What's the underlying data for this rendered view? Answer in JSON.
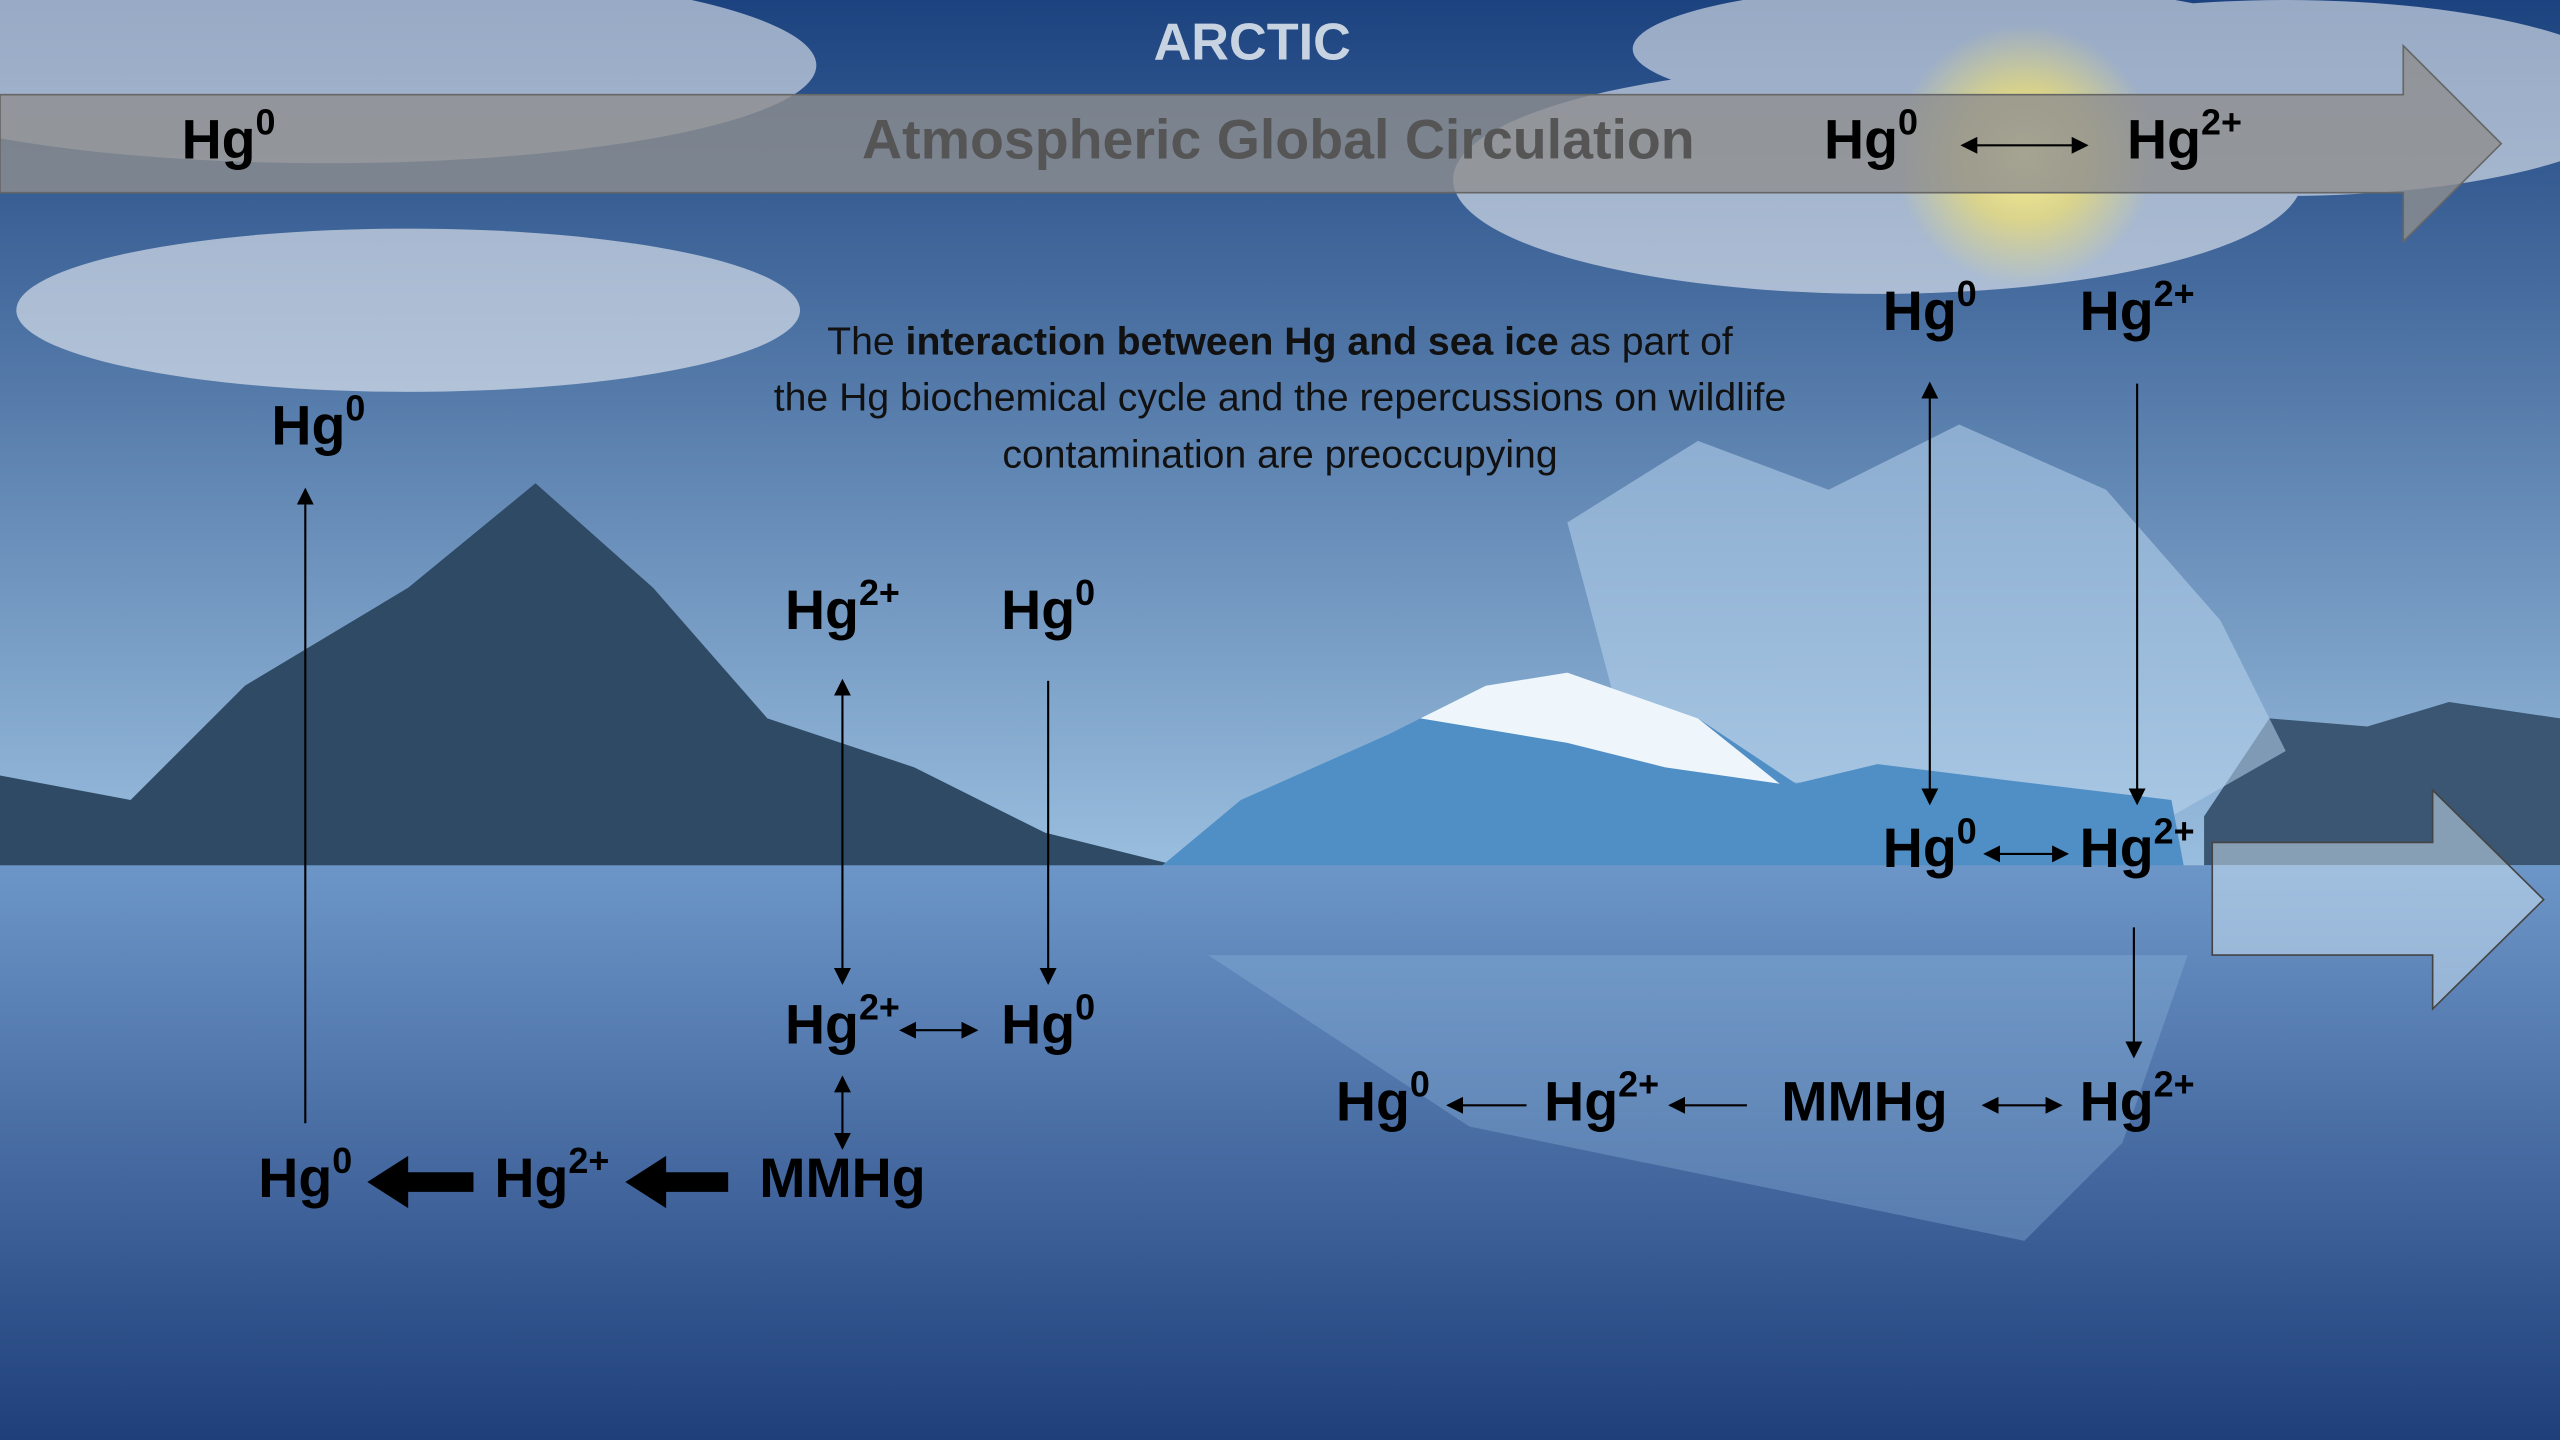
{
  "header": {
    "title": "ARCTIC",
    "banner": "Atmospheric Global Circulation"
  },
  "description": {
    "lines": [
      [
        "The ",
        "interaction between Hg and sea ice",
        " as part of"
      ],
      [
        "the Hg biochemical cycle and the repercussions on wildlife"
      ],
      [
        "contamination are preoccupying"
      ]
    ]
  },
  "species": [
    {
      "base": "Hg",
      "sup": "0"
    },
    {
      "base": "Hg",
      "sup": "0"
    },
    {
      "base": "Hg",
      "sup": "2+"
    },
    {
      "base": "Hg",
      "sup": "0"
    },
    {
      "base": "Hg",
      "sup": "2+"
    },
    {
      "base": "Hg",
      "sup": "0"
    },
    {
      "base": "Hg",
      "sup": "2+"
    },
    {
      "base": "Hg",
      "sup": "0"
    },
    {
      "base": "Hg",
      "sup": "0"
    },
    {
      "base": "Hg",
      "sup": "2+"
    },
    {
      "base": "MMHg"
    },
    {
      "base": "Hg",
      "sup": "0"
    },
    {
      "base": "Hg",
      "sup": "2+"
    },
    {
      "base": "Hg",
      "sup": "0"
    },
    {
      "base": "Hg",
      "sup": "2+"
    },
    {
      "base": "Hg",
      "sup": "0"
    },
    {
      "base": "Hg",
      "sup": "2+"
    },
    {
      "base": "MMHg"
    },
    {
      "base": "Hg",
      "sup": "2+"
    }
  ]
}
